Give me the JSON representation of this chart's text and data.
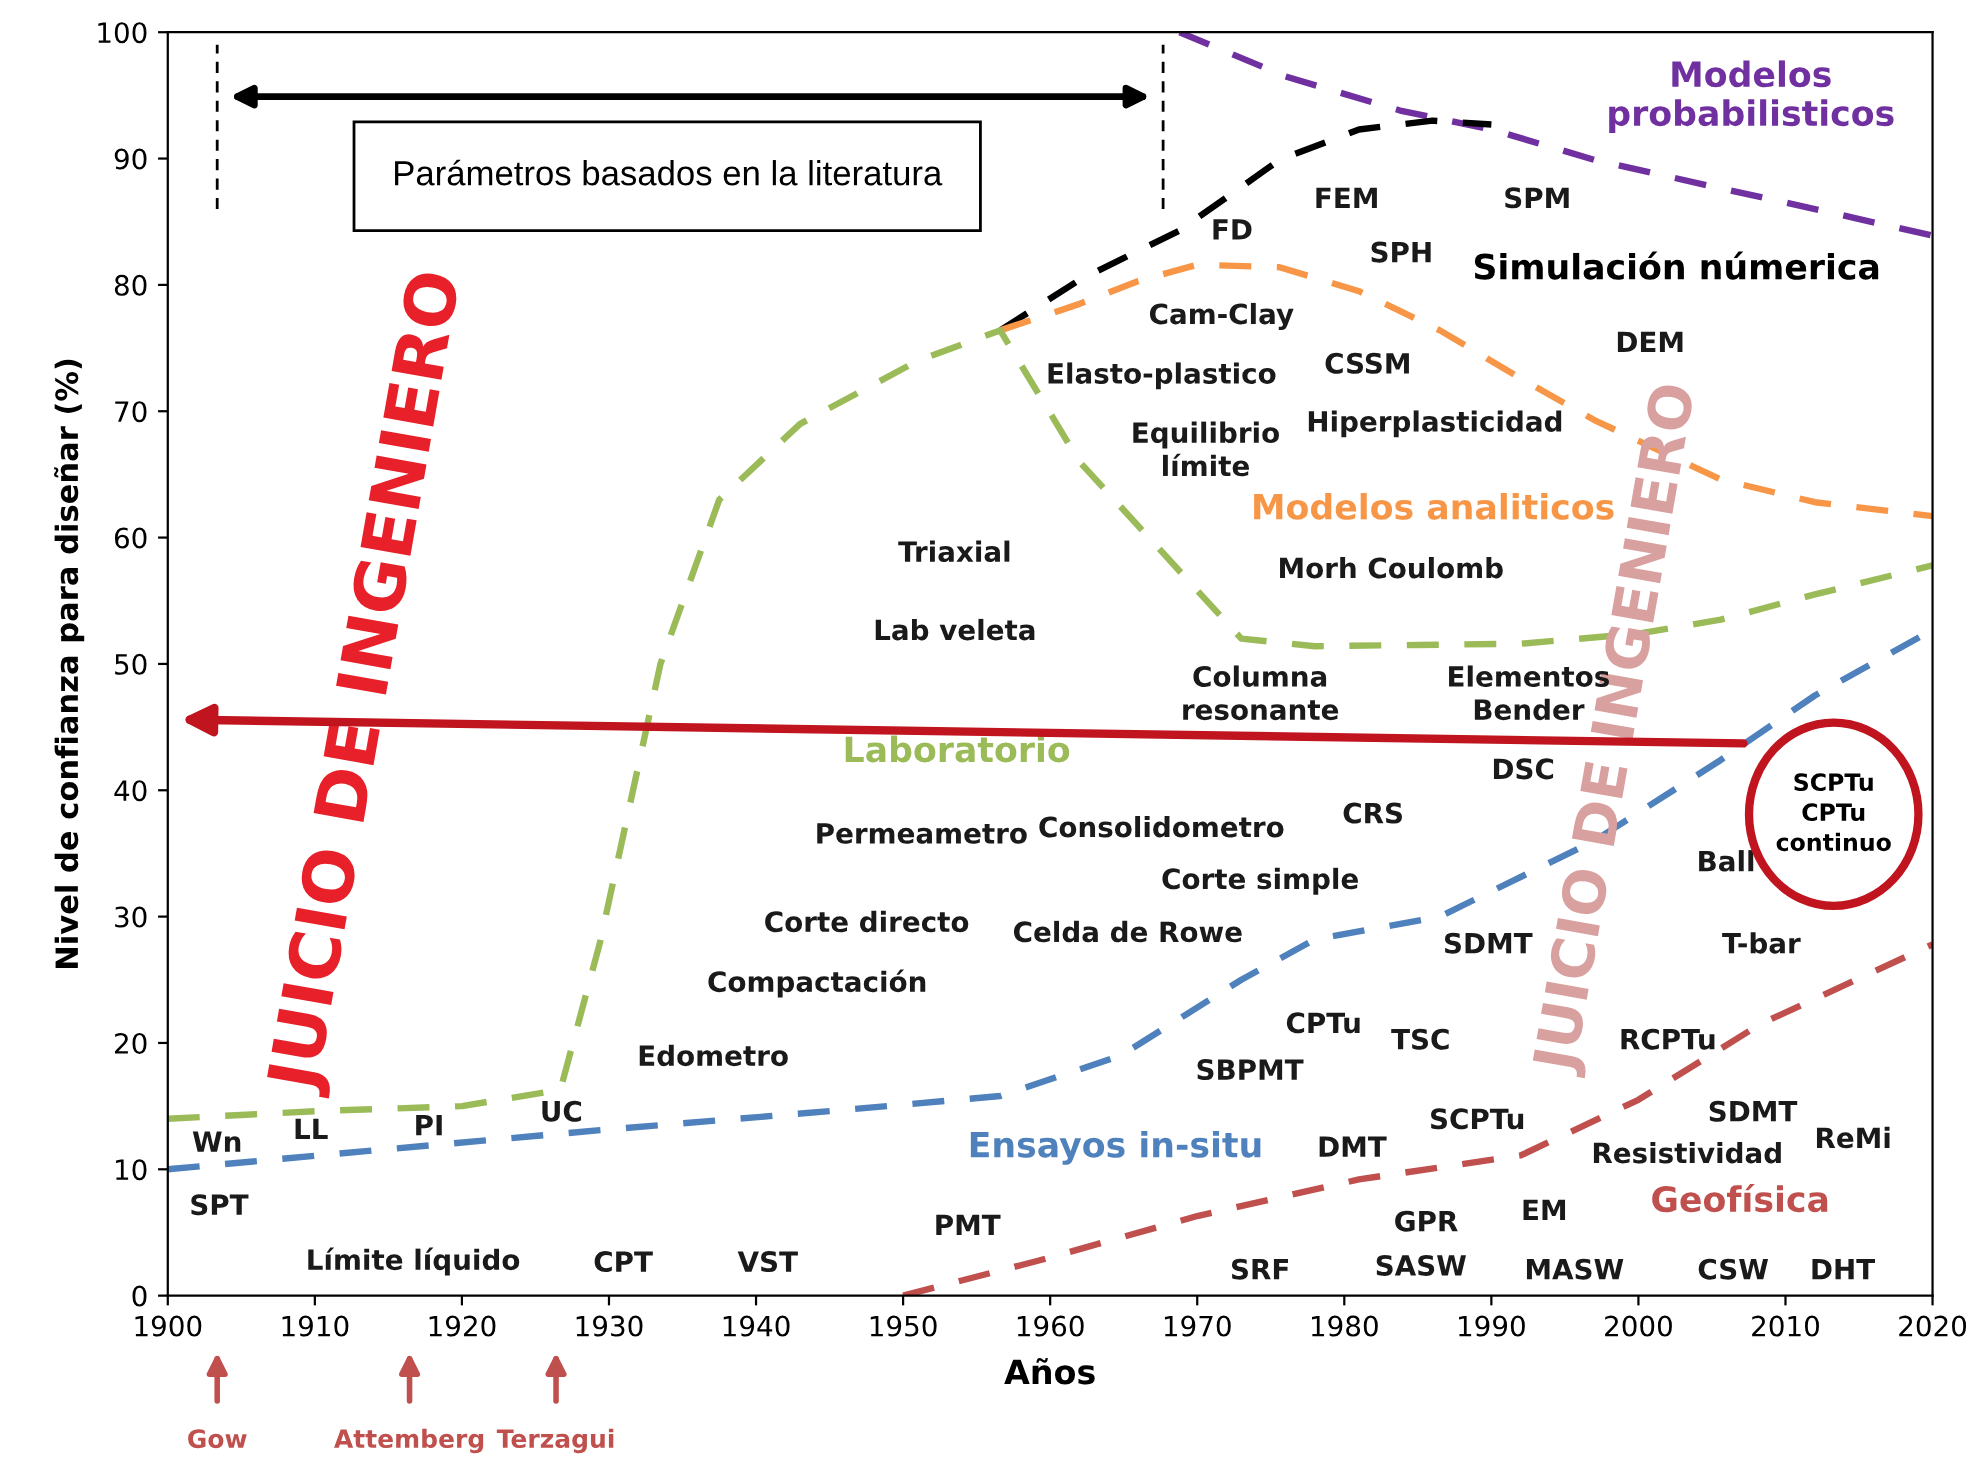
{
  "chart_data": {
    "type": "line",
    "xlabel": "Años",
    "ylabel": "Nivel de confianza para diseñar (%)",
    "xlim": [
      1900,
      2020
    ],
    "xticks": [
      1900,
      1910,
      1920,
      1930,
      1940,
      1950,
      1960,
      1970,
      1980,
      1990,
      2000,
      2010,
      2020
    ],
    "ylim": [
      0,
      100
    ],
    "yticks": [
      0,
      10,
      20,
      30,
      40,
      50,
      60,
      70,
      80,
      90,
      100
    ],
    "grid": false,
    "legend": false,
    "line_style": "dashed",
    "marker": "none",
    "series": [
      {
        "name": "Modelos\nprobabilisticos",
        "color": "#7030a0",
        "x": [
          1968.8,
          1976,
          1983.8,
          1990,
          1997,
          2005,
          2012,
          2020
        ],
        "values": [
          100,
          96.5,
          93.8,
          92.3,
          89.9,
          87.8,
          86,
          83.9
        ]
      },
      {
        "name": "Simulación númerica",
        "color": "#000000",
        "x": [
          1956.6,
          1962,
          1968.8,
          1975.6,
          1981,
          1986,
          1990
        ],
        "values": [
          76.4,
          80.4,
          84.3,
          89.9,
          92.3,
          93,
          92.7
        ]
      },
      {
        "name": "Modelos analiticos",
        "color": "#f79646",
        "x": [
          1956.6,
          1962,
          1966,
          1970,
          1975.6,
          1981,
          1986.5,
          1992,
          1997,
          2005.6,
          2012,
          2020
        ],
        "values": [
          76.4,
          78.5,
          80.3,
          81.6,
          81.4,
          79.5,
          76.4,
          72.6,
          69.3,
          64.6,
          62.8,
          61.7
        ]
      },
      {
        "name": "Laboratorio",
        "color": "#9bbb59",
        "x": [
          1900,
          1910,
          1920,
          1926.7,
          1929.4,
          1933.5,
          1937.5,
          1943,
          1951,
          1956.6,
          1962,
          1967.5,
          1973,
          1978,
          1985,
          1992,
          2000,
          2005.6,
          2012,
          2020
        ],
        "values": [
          14,
          14.6,
          15,
          16.3,
          28,
          50,
          63,
          69,
          74,
          76.4,
          66,
          59,
          52,
          51.4,
          51.5,
          51.6,
          52.4,
          53.5,
          55.5,
          57.8
        ]
      },
      {
        "name": "Ensayos in-situ",
        "color": "#4f81bd",
        "x": [
          1900,
          1915,
          1929.4,
          1945,
          1956.6,
          1964.8,
          1973,
          1978,
          1986.5,
          1997,
          2005.6,
          2012,
          2020
        ],
        "values": [
          10,
          11.6,
          13.1,
          14.6,
          15.8,
          19,
          25,
          28.2,
          30,
          36,
          42.4,
          47.5,
          52.7
        ]
      },
      {
        "name": "Geofísica",
        "color": "#c0504d",
        "x": [
          1950,
          1959.3,
          1970,
          1981,
          1992,
          2000,
          2008.3,
          2020
        ],
        "values": [
          0,
          2.8,
          6.3,
          9.2,
          11.1,
          15.5,
          21.5,
          27.8
        ]
      }
    ],
    "annotations": [
      "JUICIO DE INGENIERO",
      "JUICIO DE INGENIERO",
      "SCPTu\nCPTu\ncontinuo",
      "Gow",
      "Attemberg",
      "Terzagui",
      "Parámetros basados en la literatura",
      "FD",
      "FEM",
      "SPM",
      "SPH",
      "Cam-Clay",
      "CSSM",
      "DEM",
      "Elasto-plastico",
      "Equilibrio\nlímite",
      "Hiperplasticidad",
      "Triaxial",
      "Morh Coulomb",
      "Lab veleta",
      "Columna\nresonante",
      "Elementos\nBender",
      "DSC",
      "CRS",
      "Permeametro",
      "Consolidometro",
      "Corte simple",
      "Ball",
      "Corte directo",
      "Celda de Rowe",
      "SDMT",
      "T-bar",
      "Compactación",
      "CPTu",
      "TSC",
      "RCPTu",
      "Edometro",
      "SBPMT",
      "SCPTu",
      "SDMT",
      "Wn",
      "LL",
      "PI",
      "UC",
      "DMT",
      "Resistividad",
      "ReMi",
      "SPT",
      "PMT",
      "GPR",
      "EM",
      "Límite líquido",
      "CPT",
      "VST",
      "SRF",
      "SASW",
      "MASW",
      "CSW",
      "DHT"
    ]
  }
}
